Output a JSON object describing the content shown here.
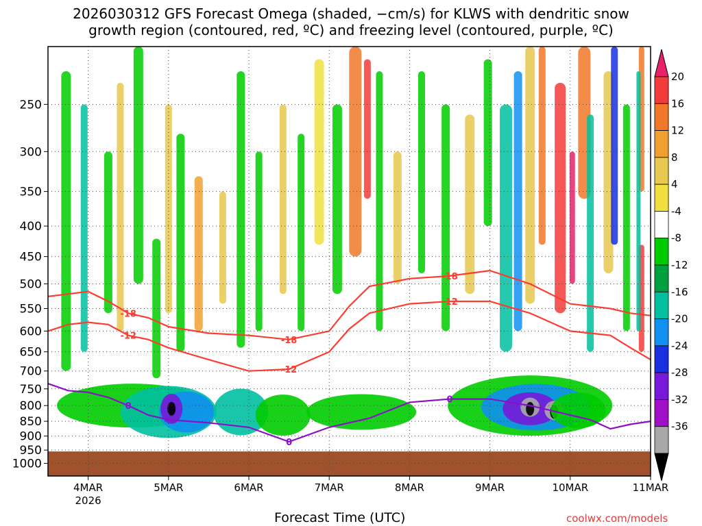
{
  "title": {
    "line1": "2026030312 GFS Forecast Omega (shaded, −cm/s) for KLWS with dendritic snow",
    "line2": "growth region (contoured, red, ºC) and freezing level (contoured, purple, ºC)"
  },
  "footer": {
    "xlabel": "Forecast Time (UTC)",
    "credit": "coolwx.com/models"
  },
  "chart_data": {
    "type": "heatmap",
    "x_axis": {
      "ticks": [
        "4MAR",
        "5MAR",
        "6MAR",
        "7MAR",
        "8MAR",
        "9MAR",
        "10MAR",
        "11MAR"
      ],
      "year_label": "2026",
      "range": [
        "2026-03-03T12",
        "2026-03-11T00"
      ]
    },
    "y_axis": {
      "scale": "log-pressure (reversed)",
      "ticks": [
        250,
        300,
        350,
        400,
        450,
        500,
        550,
        600,
        650,
        700,
        750,
        800,
        850,
        900,
        950,
        1000
      ],
      "range": [
        200,
        1050
      ]
    },
    "colorbar": {
      "labels": [
        20,
        16,
        12,
        8,
        4,
        -4,
        -8,
        -12,
        -16,
        -20,
        -24,
        -28,
        -32,
        -36
      ],
      "colors": [
        "#e8216a",
        "#f43b3b",
        "#f07828",
        "#f0a030",
        "#e8c850",
        "#f0e040",
        "#ffffff",
        "#00cc00",
        "#00a040",
        "#00c0a0",
        "#1090f0",
        "#1830e0",
        "#7818d8",
        "#a010c8",
        "#a8a8a8",
        "#000000"
      ]
    },
    "contours": {
      "dgz_minus12": {
        "color": "#ff3b30",
        "label": "-12",
        "x": [
          "2026-03-03T12",
          "2026-03-03T18",
          "2026-03-04T00",
          "2026-03-04T06",
          "2026-03-04T12",
          "2026-03-04T18",
          "2026-03-05T00",
          "2026-03-05T12",
          "2026-03-06T00",
          "2026-03-06T12",
          "2026-03-07T00",
          "2026-03-07T06",
          "2026-03-07T12",
          "2026-03-08T00",
          "2026-03-08T12",
          "2026-03-09T00",
          "2026-03-09T12",
          "2026-03-10T00",
          "2026-03-10T06",
          "2026-03-10T12",
          "2026-03-10T18",
          "2026-03-11T00"
        ],
        "p": [
          600,
          585,
          580,
          585,
          610,
          620,
          640,
          670,
          700,
          695,
          650,
          595,
          560,
          540,
          535,
          535,
          560,
          600,
          605,
          610,
          640,
          670
        ]
      },
      "dgz_minus18": {
        "color": "#ff3b30",
        "label": "-18",
        "x": [
          "2026-03-03T12",
          "2026-03-03T18",
          "2026-03-04T00",
          "2026-03-04T06",
          "2026-03-04T12",
          "2026-03-04T18",
          "2026-03-05T00",
          "2026-03-05T12",
          "2026-03-06T00",
          "2026-03-06T12",
          "2026-03-07T00",
          "2026-03-07T06",
          "2026-03-07T12",
          "2026-03-08T00",
          "2026-03-08T12",
          "2026-03-09T00",
          "2026-03-09T12",
          "2026-03-10T00",
          "2026-03-10T06",
          "2026-03-10T12",
          "2026-03-10T18",
          "2026-03-11T00"
        ],
        "p": [
          525,
          520,
          515,
          535,
          560,
          570,
          590,
          605,
          610,
          620,
          600,
          545,
          505,
          490,
          485,
          475,
          500,
          540,
          545,
          550,
          560,
          565
        ]
      },
      "freezing_level_0": {
        "color": "#8a10c8",
        "label": "0",
        "x": [
          "2026-03-03T12",
          "2026-03-03T18",
          "2026-03-04T00",
          "2026-03-04T06",
          "2026-03-04T12",
          "2026-03-04T18",
          "2026-03-05T00",
          "2026-03-05T12",
          "2026-03-06T00",
          "2026-03-06T12",
          "2026-03-07T00",
          "2026-03-07T06",
          "2026-03-07T12",
          "2026-03-08T00",
          "2026-03-08T12",
          "2026-03-09T00",
          "2026-03-09T12",
          "2026-03-10T00",
          "2026-03-10T06",
          "2026-03-10T12",
          "2026-03-10T18",
          "2026-03-11T00"
        ],
        "p": [
          735,
          755,
          760,
          775,
          800,
          830,
          845,
          855,
          870,
          920,
          870,
          855,
          840,
          790,
          780,
          780,
          800,
          830,
          845,
          875,
          860,
          850
        ]
      }
    },
    "terrain": {
      "color": "#a0522d",
      "top_p": 955
    }
  }
}
